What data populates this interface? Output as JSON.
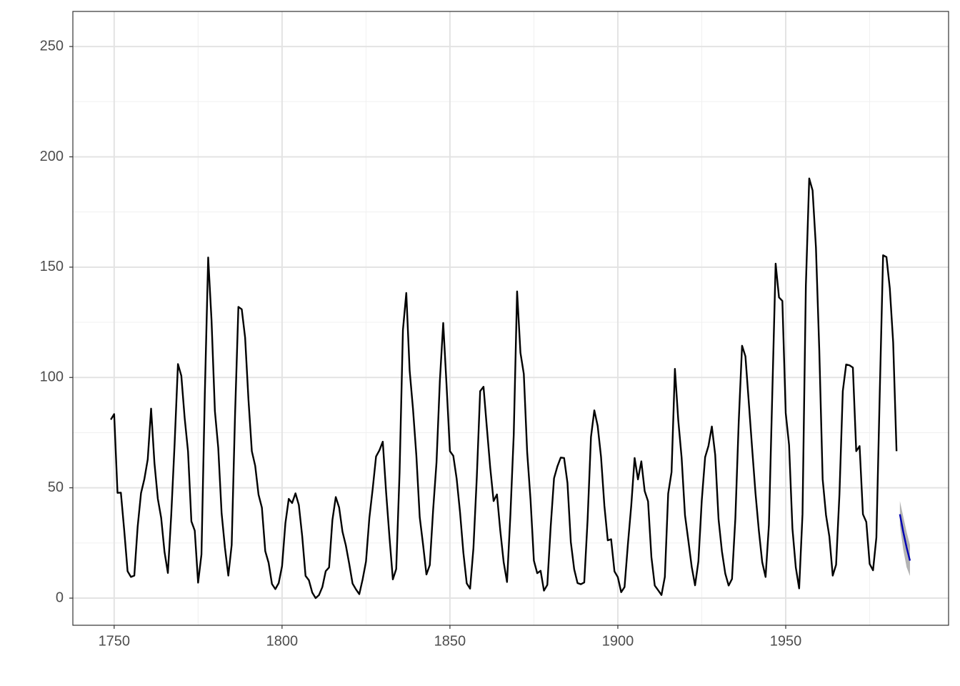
{
  "chart_data": {
    "type": "line",
    "x": [
      1749,
      1750,
      1751,
      1752,
      1753,
      1754,
      1755,
      1756,
      1757,
      1758,
      1759,
      1760,
      1761,
      1762,
      1763,
      1764,
      1765,
      1766,
      1767,
      1768,
      1769,
      1770,
      1771,
      1772,
      1773,
      1774,
      1775,
      1776,
      1777,
      1778,
      1779,
      1780,
      1781,
      1782,
      1783,
      1784,
      1785,
      1786,
      1787,
      1788,
      1789,
      1790,
      1791,
      1792,
      1793,
      1794,
      1795,
      1796,
      1797,
      1798,
      1799,
      1800,
      1801,
      1802,
      1803,
      1804,
      1805,
      1806,
      1807,
      1808,
      1809,
      1810,
      1811,
      1812,
      1813,
      1814,
      1815,
      1816,
      1817,
      1818,
      1819,
      1820,
      1821,
      1822,
      1823,
      1824,
      1825,
      1826,
      1827,
      1828,
      1829,
      1830,
      1831,
      1832,
      1833,
      1834,
      1835,
      1836,
      1837,
      1838,
      1839,
      1840,
      1841,
      1842,
      1843,
      1844,
      1845,
      1846,
      1847,
      1848,
      1849,
      1850,
      1851,
      1852,
      1853,
      1854,
      1855,
      1856,
      1857,
      1858,
      1859,
      1860,
      1861,
      1862,
      1863,
      1864,
      1865,
      1866,
      1867,
      1868,
      1869,
      1870,
      1871,
      1872,
      1873,
      1874,
      1875,
      1876,
      1877,
      1878,
      1879,
      1880,
      1881,
      1882,
      1883,
      1884,
      1885,
      1886,
      1887,
      1888,
      1889,
      1890,
      1891,
      1892,
      1893,
      1894,
      1895,
      1896,
      1897,
      1898,
      1899,
      1900,
      1901,
      1902,
      1903,
      1904,
      1905,
      1906,
      1907,
      1908,
      1909,
      1910,
      1911,
      1912,
      1913,
      1914,
      1915,
      1916,
      1917,
      1918,
      1919,
      1920,
      1921,
      1922,
      1923,
      1924,
      1925,
      1926,
      1927,
      1928,
      1929,
      1930,
      1931,
      1932,
      1933,
      1934,
      1935,
      1936,
      1937,
      1938,
      1939,
      1940,
      1941,
      1942,
      1943,
      1944,
      1945,
      1946,
      1947,
      1948,
      1949,
      1950,
      1951,
      1952,
      1953,
      1954,
      1955,
      1956,
      1957,
      1958,
      1959,
      1960,
      1961,
      1962,
      1963,
      1964,
      1965,
      1966,
      1967,
      1968,
      1969,
      1970,
      1971,
      1972,
      1973,
      1974,
      1975,
      1976,
      1977,
      1978,
      1979,
      1980,
      1981,
      1982,
      1983
    ],
    "series": [
      {
        "color": "#000000",
        "values": [
          80.9,
          83.4,
          47.7,
          47.8,
          30.7,
          12.2,
          9.6,
          10.2,
          32.4,
          47.6,
          54.0,
          62.9,
          85.9,
          61.2,
          45.1,
          36.4,
          20.9,
          11.4,
          37.8,
          69.8,
          106.1,
          100.8,
          81.6,
          66.5,
          34.8,
          30.6,
          7.0,
          19.8,
          92.5,
          154.4,
          125.9,
          84.8,
          68.1,
          38.5,
          22.8,
          10.2,
          24.1,
          82.9,
          132.0,
          130.9,
          118.1,
          89.9,
          66.6,
          60.0,
          46.9,
          41.0,
          21.3,
          16.0,
          6.4,
          4.1,
          6.8,
          14.5,
          34.0,
          45.0,
          43.1,
          47.5,
          42.2,
          28.1,
          10.1,
          8.1,
          2.5,
          0.0,
          1.4,
          5.0,
          12.2,
          13.9,
          35.4,
          45.8,
          41.1,
          30.1,
          23.9,
          15.6,
          6.6,
          4.0,
          1.8,
          8.5,
          16.6,
          36.3,
          49.6,
          64.2,
          67.0,
          70.9,
          47.8,
          27.5,
          8.5,
          13.2,
          56.9,
          121.5,
          138.3,
          103.2,
          85.7,
          64.6,
          36.7,
          24.2,
          10.7,
          15.0,
          40.1,
          61.5,
          98.5,
          124.7,
          96.3,
          66.6,
          64.5,
          54.1,
          39.0,
          20.6,
          6.7,
          4.3,
          22.7,
          54.8,
          93.8,
          95.8,
          77.2,
          59.1,
          44.0,
          47.0,
          30.5,
          16.3,
          7.3,
          37.6,
          74.0,
          139.0,
          111.2,
          101.6,
          66.2,
          44.7,
          17.0,
          11.3,
          12.4,
          3.4,
          6.0,
          32.3,
          54.3,
          59.7,
          63.7,
          63.5,
          52.2,
          25.4,
          13.1,
          6.8,
          6.3,
          7.1,
          35.6,
          73.0,
          85.1,
          78.0,
          64.0,
          41.8,
          26.2,
          26.7,
          12.1,
          9.5,
          2.7,
          5.0,
          24.4,
          42.0,
          63.5,
          53.8,
          62.0,
          48.5,
          43.9,
          18.6,
          5.7,
          3.6,
          1.4,
          9.6,
          47.4,
          57.1,
          103.9,
          80.6,
          63.6,
          37.6,
          26.1,
          14.2,
          5.8,
          16.7,
          44.3,
          63.9,
          69.0,
          77.8,
          64.9,
          35.7,
          21.2,
          11.1,
          5.7,
          8.7,
          36.1,
          79.7,
          114.4,
          109.6,
          88.8,
          67.8,
          47.5,
          30.6,
          16.3,
          9.6,
          33.2,
          92.6,
          151.6,
          136.3,
          134.7,
          83.9,
          69.4,
          31.5,
          13.9,
          4.4,
          38.0,
          141.7,
          190.2,
          184.8,
          159.0,
          112.3,
          53.9,
          37.6,
          27.9,
          10.2,
          15.1,
          47.0,
          93.8,
          105.9,
          105.5,
          104.5,
          66.6,
          68.9,
          38.0,
          34.5,
          15.5,
          12.6,
          27.5,
          92.5,
          155.4,
          154.6,
          140.4,
          115.9,
          66.6
        ]
      }
    ],
    "forecast": {
      "x": [
        1984,
        1985,
        1986,
        1987
      ],
      "values": [
        38,
        30,
        23,
        17
      ],
      "lower": [
        33,
        22,
        14,
        10
      ],
      "upper": [
        44,
        37,
        30,
        24
      ],
      "color": "#0000b3",
      "band_color": "#b3b3b3"
    },
    "xlim": [
      1737.7,
      1998.5
    ],
    "ylim": [
      -12.3,
      265.9
    ],
    "xticks": [
      1750,
      1800,
      1850,
      1900,
      1950
    ],
    "yticks": [
      0,
      50,
      100,
      150,
      200,
      250
    ],
    "grid": true
  }
}
